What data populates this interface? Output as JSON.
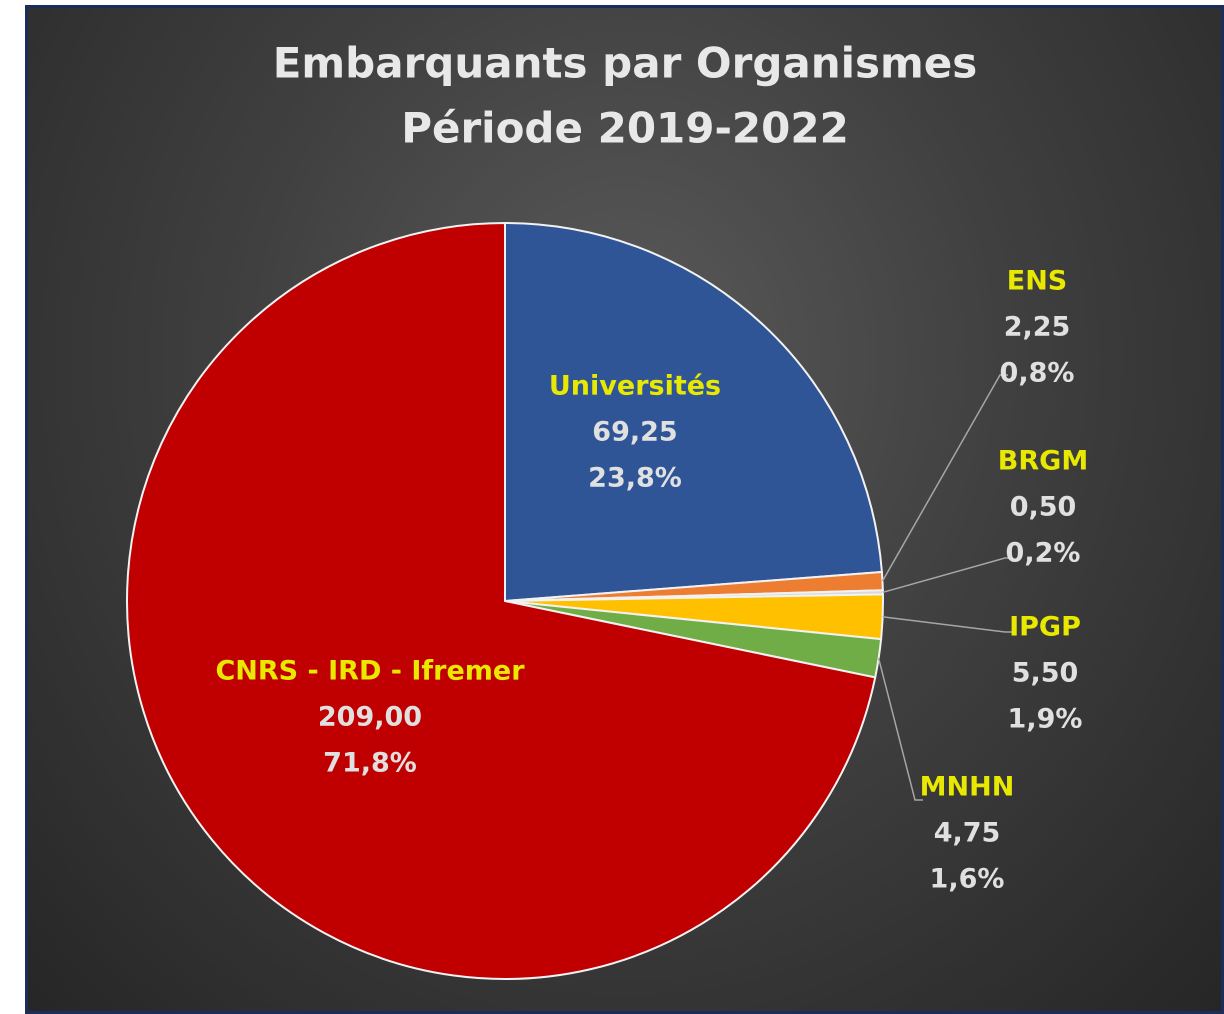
{
  "chart_data": {
    "type": "pie",
    "title": [
      "Embarquants par Organismes",
      "Période 2019-2022"
    ],
    "categories": [
      "Universités",
      "ENS",
      "BRGM",
      "IPGP",
      "MNHN",
      "CNRS - IRD - Ifremer"
    ],
    "values": [
      69.25,
      2.25,
      0.5,
      5.5,
      4.75,
      209.0
    ],
    "value_labels": [
      "69,25",
      "2,25",
      "0,50",
      "5,50",
      "4,75",
      "209,00"
    ],
    "percents": [
      23.8,
      0.8,
      0.2,
      1.9,
      1.6,
      71.8
    ],
    "percent_labels": [
      "23,8%",
      "0,8%",
      "0,2%",
      "1,9%",
      "1,6%",
      "71,8%"
    ],
    "colors": [
      "#2f5597",
      "#ed7d31",
      "#d9d9d9",
      "#ffc000",
      "#70ad47",
      "#c00000"
    ]
  }
}
